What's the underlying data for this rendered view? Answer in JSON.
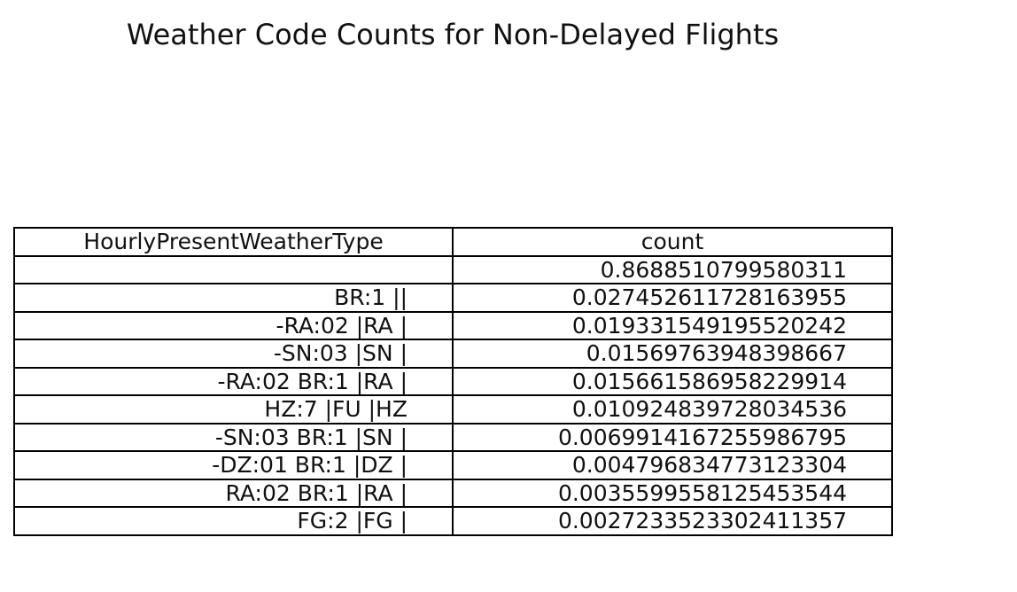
{
  "chart_data": {
    "type": "table",
    "title": "Weather Code Counts for Non-Delayed Flights",
    "columns": [
      "HourlyPresentWeatherType",
      "count"
    ],
    "rows": [
      {
        "type": "",
        "count": "0.8688510799580311"
      },
      {
        "type": "BR:1 ||",
        "count": "0.027452611728163955"
      },
      {
        "type": "-RA:02 |RA |",
        "count": "0.019331549195520242"
      },
      {
        "type": "-SN:03 |SN |",
        "count": "0.01569763948398667"
      },
      {
        "type": "-RA:02 BR:1 |RA |",
        "count": "0.015661586958229914"
      },
      {
        "type": "HZ:7 |FU |HZ",
        "count": "0.010924839728034536"
      },
      {
        "type": "-SN:03 BR:1 |SN |",
        "count": "0.006991416725598679 5"
      },
      {
        "type": "-DZ:01 BR:1 |DZ |",
        "count": "0.004796834773123304"
      },
      {
        "type": "RA:02 BR:1 |RA |",
        "count": "0.003559955812545354 4"
      },
      {
        "type": "FG:2 |FG |",
        "count": "0.0027233523302411357"
      }
    ]
  }
}
